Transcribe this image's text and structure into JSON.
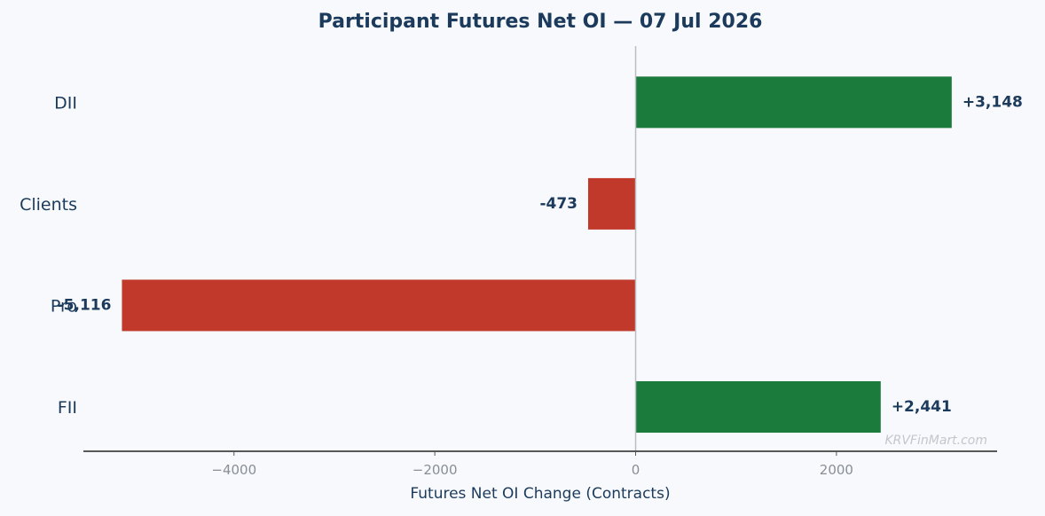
{
  "chart_data": {
    "type": "bar",
    "orientation": "horizontal",
    "title": "Participant Futures Net OI — 07 Jul 2026",
    "xlabel": "Futures Net OI Change (Contracts)",
    "ylabel": "",
    "categories": [
      "FII",
      "Pro",
      "Clients",
      "DII"
    ],
    "values": [
      2441,
      -5116,
      -473,
      3148
    ],
    "data_labels": [
      "+2,441",
      "-5,116",
      "-473",
      "+3,148"
    ],
    "xlim": [
      -5500,
      3600
    ],
    "xticks": [
      -4000,
      -2000,
      0,
      2000
    ],
    "xtick_labels": [
      "−4000",
      "−2000",
      "0",
      "2000"
    ],
    "grid": false,
    "colors": {
      "positive": "#1b7b3c",
      "negative": "#c0392b",
      "text": "#1b3a5c",
      "zero_line": "#b9bec5",
      "background": "#f7f9fc"
    }
  },
  "watermark": "KRVFinMart.com"
}
